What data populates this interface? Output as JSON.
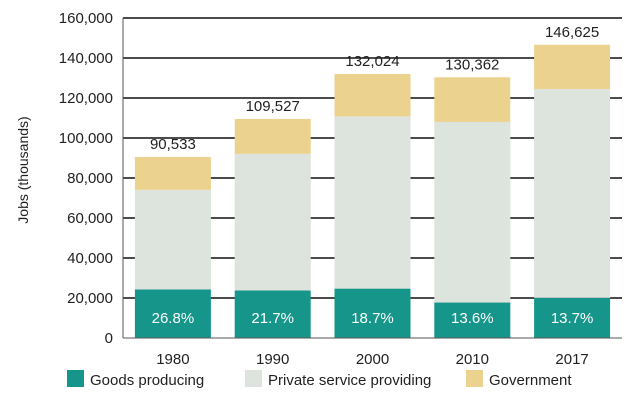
{
  "chart_data": {
    "type": "bar",
    "stacked": true,
    "ylabel": "Jobs (thousands)",
    "ylim": [
      0,
      160000
    ],
    "yticks": [
      0,
      20000,
      40000,
      60000,
      80000,
      100000,
      120000,
      140000,
      160000
    ],
    "ytick_labels": [
      "0",
      "20,000",
      "40,000",
      "60,000",
      "80,000",
      "100,000",
      "120,000",
      "140,000",
      "160,000"
    ],
    "grid": true,
    "legend_position": "bottom",
    "categories": [
      "1980",
      "1990",
      "2000",
      "2010",
      "2017"
    ],
    "series": [
      {
        "name": "Goods producing",
        "color": "#16958a",
        "values": [
          24263,
          23767,
          24688,
          17730,
          20088
        ]
      },
      {
        "name": "Private service providing",
        "color": "#dde3dd",
        "values": [
          49800,
          68300,
          86100,
          90300,
          104400
        ]
      },
      {
        "name": "Government",
        "color": "#ecd28f",
        "values": [
          16470,
          17460,
          21236,
          22332,
          22137
        ]
      }
    ],
    "totals": [
      90533,
      109527,
      132024,
      130362,
      146625
    ],
    "total_labels": [
      "90,533",
      "109,527",
      "132,024",
      "130,362",
      "146,625"
    ],
    "goods_share_labels": [
      "26.8%",
      "21.7%",
      "18.7%",
      "13.6%",
      "13.7%"
    ]
  }
}
